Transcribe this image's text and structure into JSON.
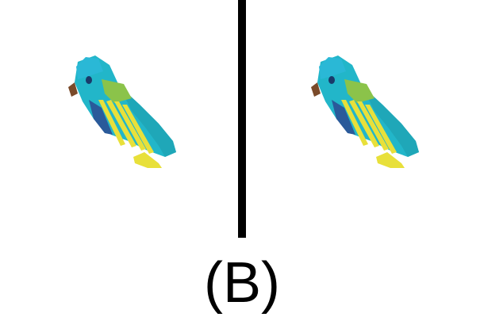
{
  "option_label": "(B)",
  "colors": {
    "background": "#ffffff",
    "divider": "#000000",
    "bird_body": "#22b6c9",
    "bird_body_shade": "#1a9fb3",
    "bird_wing": "#8bc34a",
    "bird_stripes": "#e8e03a",
    "bird_beak": "#7a4a2a",
    "bird_eye": "#1a3a6a"
  },
  "panels": [
    {
      "name": "left-view",
      "object_icon": "parrot-icon"
    },
    {
      "name": "right-view",
      "object_icon": "parrot-icon"
    }
  ]
}
